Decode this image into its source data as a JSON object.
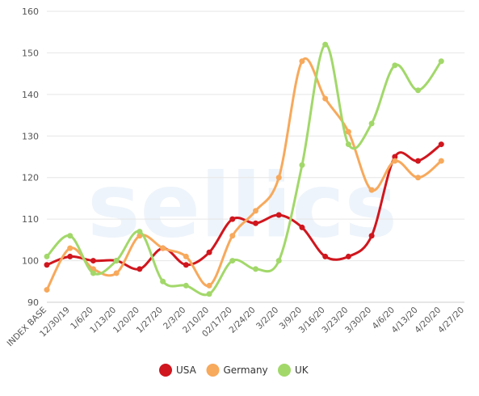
{
  "chart_data": {
    "type": "line",
    "watermark": "sellics",
    "categories": [
      "INDEX BASE",
      "12/30/19",
      "1/6/20",
      "1/13/20",
      "1/20/20",
      "1/27/20",
      "2/3/20",
      "2/10/20",
      "02/17/20",
      "2/24/20",
      "3/2/20",
      "3/9/20",
      "3/16/20",
      "3/23/20",
      "3/30/20",
      "4/6/20",
      "4/13/20",
      "4/20/20",
      "4/27/20"
    ],
    "series": [
      {
        "name": "USA",
        "color": "#d0161e",
        "values": [
          99,
          101,
          100,
          100,
          98,
          103,
          99,
          102,
          110,
          109,
          111,
          108,
          101,
          101,
          106,
          125,
          124,
          128,
          null
        ]
      },
      {
        "name": "Germany",
        "color": "#f7a95c",
        "values": [
          93,
          103,
          98,
          97,
          106,
          103,
          101,
          94,
          106,
          112,
          120,
          148,
          139,
          131,
          117,
          124,
          120,
          124,
          null
        ]
      },
      {
        "name": "UK",
        "color": "#a2d86a",
        "values": [
          101,
          106,
          97,
          100,
          107,
          95,
          94,
          92,
          100,
          98,
          100,
          123,
          152,
          128,
          133,
          147,
          141,
          148,
          null
        ]
      }
    ],
    "ylim": [
      90,
      160
    ],
    "yticks": [
      90,
      100,
      110,
      120,
      130,
      140,
      150,
      160
    ],
    "grid": true,
    "legend": "bottom"
  }
}
